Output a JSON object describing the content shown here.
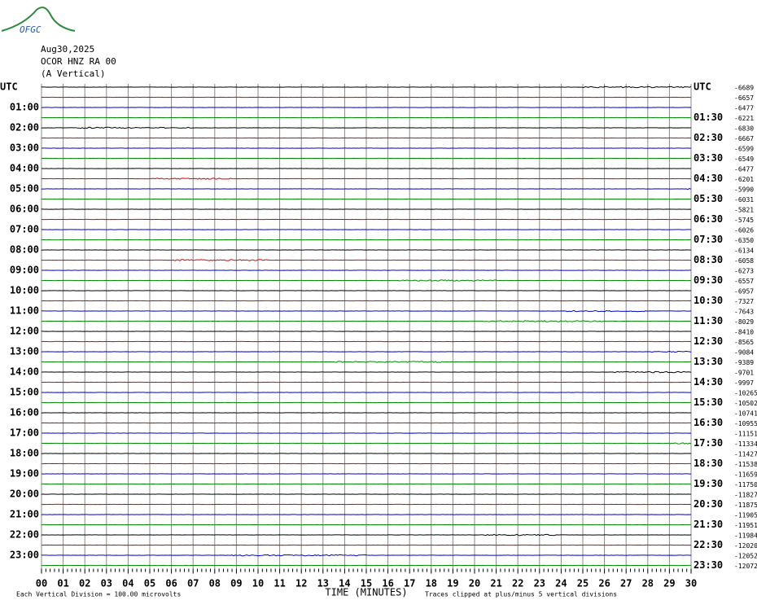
{
  "logo": "OFGC",
  "header": {
    "date": "Aug30,2025",
    "station": "OCOR HNZ RA 00",
    "component": "(A Vertical)"
  },
  "left_labels": [
    "UTC",
    "01:00",
    "02:00",
    "03:00",
    "04:00",
    "05:00",
    "06:00",
    "07:00",
    "08:00",
    "09:00",
    "10:00",
    "11:00",
    "12:00",
    "13:00",
    "14:00",
    "15:00",
    "16:00",
    "17:00",
    "18:00",
    "19:00",
    "20:00",
    "21:00",
    "22:00",
    "23:00"
  ],
  "right_labels": [
    "UTC",
    "01:30",
    "02:30",
    "03:30",
    "04:30",
    "05:30",
    "06:30",
    "07:30",
    "08:30",
    "09:30",
    "10:30",
    "11:30",
    "12:30",
    "13:30",
    "14:30",
    "15:30",
    "16:30",
    "17:30",
    "18:30",
    "19:30",
    "20:30",
    "21:30",
    "22:30",
    "23:30"
  ],
  "offsets": [
    -6689,
    -6657,
    -6477,
    -6221,
    -6830,
    -6667,
    -6599,
    -6549,
    -6477,
    -6201,
    -5990,
    -6031,
    -5821,
    -5745,
    -6026,
    -6350,
    -6134,
    -6058,
    -6273,
    -6557,
    -6957,
    -7327,
    -7643,
    -8029,
    -8410,
    -8565,
    -9084,
    -9389,
    -9701,
    -9997,
    -10265,
    -10502,
    -10741,
    -10955,
    -11151,
    -11334,
    -11427,
    -11538,
    -11659,
    -11750,
    -11827,
    -11875,
    -11905,
    -11951,
    -11984,
    -12020,
    -12052,
    -12072
  ],
  "x_labels": [
    "00",
    "01",
    "02",
    "03",
    "04",
    "05",
    "06",
    "07",
    "08",
    "09",
    "10",
    "11",
    "12",
    "13",
    "14",
    "15",
    "16",
    "17",
    "18",
    "19",
    "20",
    "21",
    "22",
    "23",
    "24",
    "25",
    "26",
    "27",
    "28",
    "29",
    "30"
  ],
  "x_title": "TIME (MINUTES)",
  "footer": {
    "scale": "Each Vertical Division =  100.00 microvolts",
    "clip": "Traces clipped at plus/minus 5 vertical divisions"
  }
}
